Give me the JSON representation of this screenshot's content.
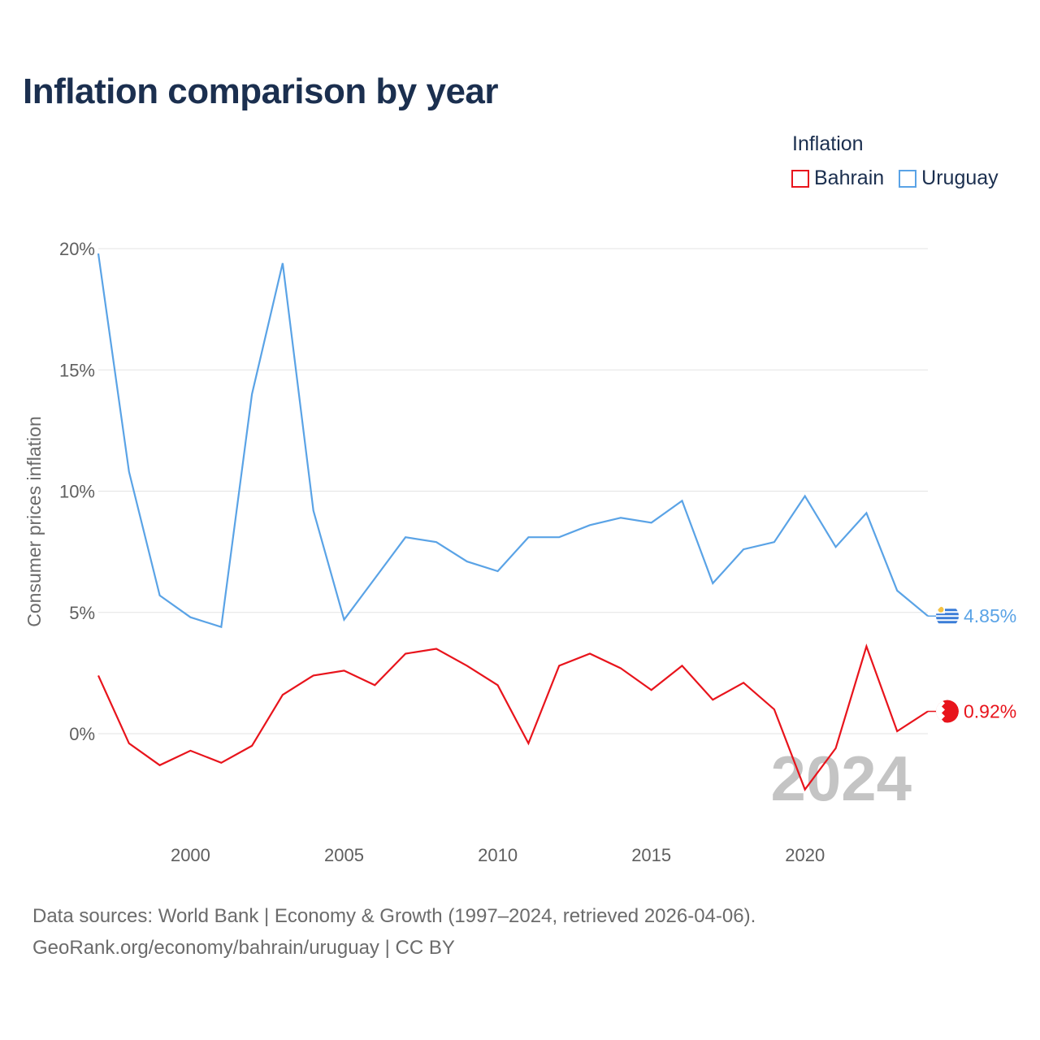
{
  "title": "Inflation comparison by year",
  "legend": {
    "title": "Inflation",
    "items": [
      {
        "name": "Bahrain",
        "color": "#e8141c"
      },
      {
        "name": "Uruguay",
        "color": "#5aa3e6"
      }
    ]
  },
  "footer": {
    "line1": "Data sources: World Bank | Economy & Growth (1997–2024, retrieved 2026-04-06).",
    "line2": "GeoRank.org/economy/bahrain/uruguay | CC BY"
  },
  "chart_data": {
    "type": "line",
    "title": "Inflation comparison by year",
    "xlabel": "",
    "ylabel": "Consumer prices inflation",
    "xlim": [
      1997,
      2024
    ],
    "ylim": [
      -3.5,
      20
    ],
    "x_ticks": [
      2000,
      2005,
      2010,
      2015,
      2020
    ],
    "x_tick_labels": [
      "2000",
      "2005",
      "2010",
      "2015",
      "2020"
    ],
    "y_ticks": [
      0,
      5,
      10,
      15,
      20
    ],
    "y_tick_labels": [
      "0%",
      "5%",
      "10%",
      "15%",
      "20%"
    ],
    "grid": true,
    "year_label": "2024",
    "x": [
      1997,
      1998,
      1999,
      2000,
      2001,
      2002,
      2003,
      2004,
      2005,
      2006,
      2007,
      2008,
      2009,
      2010,
      2011,
      2012,
      2013,
      2014,
      2015,
      2016,
      2017,
      2018,
      2019,
      2020,
      2021,
      2022,
      2023,
      2024
    ],
    "series": [
      {
        "name": "Uruguay",
        "color": "#5aa3e6",
        "end_label": "4.85%",
        "flag": "uruguay-flag",
        "values": [
          19.8,
          10.8,
          5.7,
          4.8,
          4.4,
          14.0,
          19.4,
          9.2,
          4.7,
          6.4,
          8.1,
          7.9,
          7.1,
          6.7,
          8.1,
          8.1,
          8.6,
          8.9,
          8.7,
          9.6,
          6.2,
          7.6,
          7.9,
          9.8,
          7.7,
          9.1,
          5.9,
          4.85
        ]
      },
      {
        "name": "Bahrain",
        "color": "#e8141c",
        "end_label": "0.92%",
        "flag": "bahrain-flag",
        "values": [
          2.4,
          -0.4,
          -1.3,
          -0.7,
          -1.2,
          -0.5,
          1.6,
          2.4,
          2.6,
          2.0,
          3.3,
          3.5,
          2.8,
          2.0,
          -0.4,
          2.8,
          3.3,
          2.7,
          1.8,
          2.8,
          1.4,
          2.1,
          1.0,
          -2.3,
          -0.6,
          3.6,
          0.1,
          0.92
        ]
      }
    ]
  }
}
